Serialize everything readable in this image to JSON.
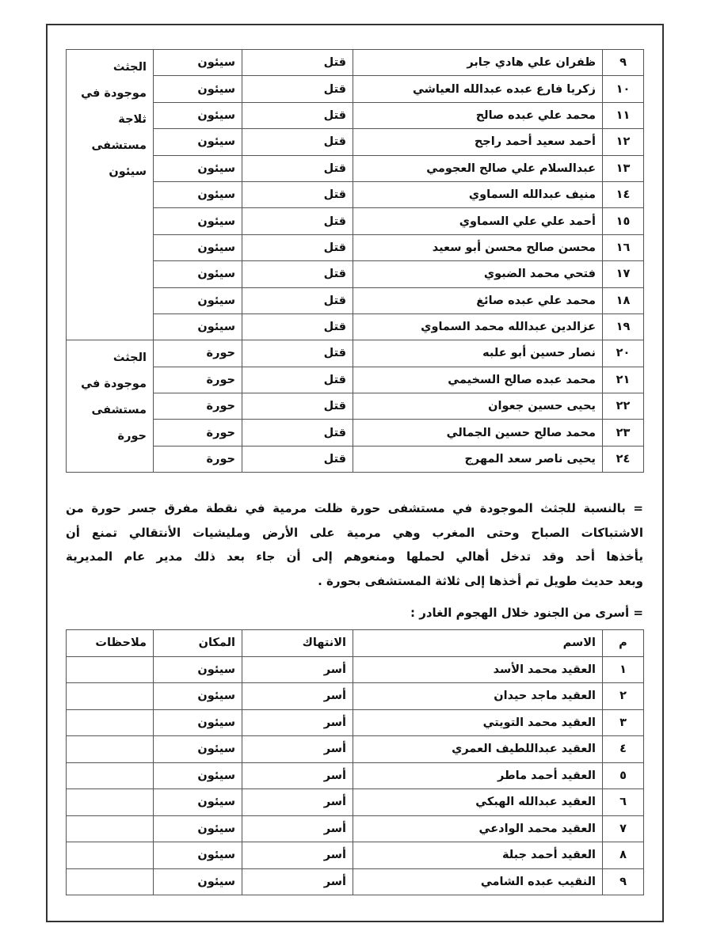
{
  "table1": {
    "groups": [
      {
        "note_lines": [
          "الجثث",
          "موجودة في",
          "ثلاجة",
          "مستشفى",
          "سيئون"
        ],
        "rows": [
          [
            "٩",
            "ظفران علي هادي جابر",
            "قتل",
            "سيئون"
          ],
          [
            "١٠",
            "زكريا فارع عبده عبدالله العياشي",
            "قتل",
            "سيئون"
          ],
          [
            "١١",
            "محمد علي عبده صالح",
            "قتل",
            "سيئون"
          ],
          [
            "١٢",
            "أحمد سعيد أحمد راجح",
            "قتل",
            "سيئون"
          ],
          [
            "١٣",
            "عبدالسلام علي صالح العجومي",
            "قتل",
            "سيئون"
          ],
          [
            "١٤",
            "منيف عبدالله السماوي",
            "قتل",
            "سيئون"
          ],
          [
            "١٥",
            "أحمد علي علي السماوي",
            "قتل",
            "سيئون"
          ],
          [
            "١٦",
            "محسن صالح محسن أبو سعيد",
            "قتل",
            "سيئون"
          ],
          [
            "١٧",
            "فتحي محمد الضبوي",
            "قتل",
            "سيئون"
          ],
          [
            "١٨",
            "محمد علي عبده صائغ",
            "قتل",
            "سيئون"
          ],
          [
            "١٩",
            "عزالدين عبدالله محمد السماوي",
            "قتل",
            "سيئون"
          ]
        ]
      },
      {
        "note_lines": [
          "الجثث",
          "موجودة في",
          "مستشفى",
          "حورة"
        ],
        "rows": [
          [
            "٢٠",
            "نصار حسين أبو علبه",
            "قتل",
            "حورة"
          ],
          [
            "٢١",
            "محمد عبده صالح السخيمي",
            "قتل",
            "حورة"
          ],
          [
            "٢٢",
            "يحيى حسين جعوان",
            "قتل",
            "حورة"
          ],
          [
            "٢٣",
            "محمد صالح حسين الجمالي",
            "قتل",
            "حورة"
          ],
          [
            "٢٤",
            "يحيى ناصر سعد المهرج",
            "قتل",
            "حورة"
          ]
        ]
      }
    ]
  },
  "paragraph": {
    "lines": [
      "= بالنسبة للجثث الموجودة في مستشفى حورة ظلت مرمية في نقطة مفرق جسر حورة من",
      "الاشتباكات الصباح وحتى المغرب وهي مرمية على الأرض ومليشيات الأنتقالي تمنع أن",
      "يأخذها أحد وقد تدخل أهالي لحملها ومنعوهم إلى أن جاء بعد ذلك مدير عام المديرية",
      "وبعد حديث طويل تم أخذها إلى ثلاثة المستشفى بحورة ."
    ]
  },
  "heading2": "= أسرى من الجنود خلال الهجوم الغادر :",
  "table2": {
    "header": [
      "م",
      "الاسم",
      "الانتهاك",
      "المكان",
      "ملاحظات"
    ],
    "rows": [
      [
        "١",
        "العقيد محمد الأسد",
        "أسر",
        "سيئون"
      ],
      [
        "٢",
        "العقيد ماجد حيدان",
        "أسر",
        "سيئون"
      ],
      [
        "٣",
        "العقيد محمد التويتي",
        "أسر",
        "سيئون"
      ],
      [
        "٤",
        "العقيد عبداللطيف العمري",
        "أسر",
        "سيئون"
      ],
      [
        "٥",
        "العقيد أحمد ماطر",
        "أسر",
        "سيئون"
      ],
      [
        "٦",
        "العقيد عبدالله الهبكي",
        "أسر",
        "سيئون"
      ],
      [
        "٧",
        "العقيد محمد الوادعي",
        "أسر",
        "سيئون"
      ],
      [
        "٨",
        "العقيد أحمد جبلة",
        "أسر",
        "سيئون"
      ],
      [
        "٩",
        "النقيب عبده الشامي",
        "أسر",
        "سيئون"
      ]
    ]
  }
}
